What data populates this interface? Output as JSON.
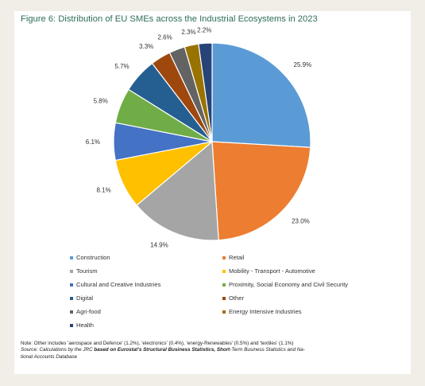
{
  "title": "Figure 6: Distribution of EU SMEs across the Industrial Ecosystems in 2023",
  "chart_data": {
    "type": "pie",
    "title": "Figure 6: Distribution of EU SMEs across the Industrial Ecosystems in 2023",
    "value_unit": "%",
    "legend_position": "bottom",
    "slices": [
      {
        "name": "Construction",
        "value": 25.9,
        "label": "25.9%",
        "color": "#5b9bd5"
      },
      {
        "name": "Retail",
        "value": 23.0,
        "label": "23.0%",
        "color": "#ed7d31"
      },
      {
        "name": "Tourism",
        "value": 14.9,
        "label": "14.9%",
        "color": "#a5a5a5"
      },
      {
        "name": "Mobility - Transport - Automotive",
        "value": 8.1,
        "label": "8.1%",
        "color": "#ffc000"
      },
      {
        "name": "Cultural and Creative Industries",
        "value": 6.1,
        "label": "6.1%",
        "color": "#4472c4"
      },
      {
        "name": "Proximity, Social Economy and Civil Security",
        "value": 5.8,
        "label": "5.8%",
        "color": "#70ad47"
      },
      {
        "name": "Digital",
        "value": 5.7,
        "label": "5.7%",
        "color": "#255e91"
      },
      {
        "name": "Other",
        "value": 3.3,
        "label": "3.3%",
        "color": "#9e480e"
      },
      {
        "name": "Agri-food",
        "value": 2.6,
        "label": "2.6%",
        "color": "#636363"
      },
      {
        "name": "Energy Intensive Industries",
        "value": 2.3,
        "label": "2.3%",
        "color": "#997300"
      },
      {
        "name": "Health",
        "value": 2.2,
        "label": "2.2%",
        "color": "#264478"
      }
    ]
  },
  "legend_order": [
    "Construction",
    "Retail",
    "Tourism",
    "Mobility - Transport - Automotive",
    "Cultural and Creative Industries",
    "Proximity, Social Economy and Civil Security",
    "Digital",
    "Other",
    "Agri-food",
    "Energy Intensive Industries",
    "Health"
  ],
  "note": {
    "text": "Note: Other includes 'aerospace and Defence' (1.2%), 'electronics' (0.4%), 'energy-Renewables' (0.5%) and 'textiles' (1.1%)",
    "source_prefix": "Source: Calculations by the JRC ",
    "source_bold_1": "based on Eurostat's Structural Business Statistics, Short",
    "source_middle": "-Term Business Statistics and Na-",
    "source_line2": "tional Accounts Database"
  }
}
